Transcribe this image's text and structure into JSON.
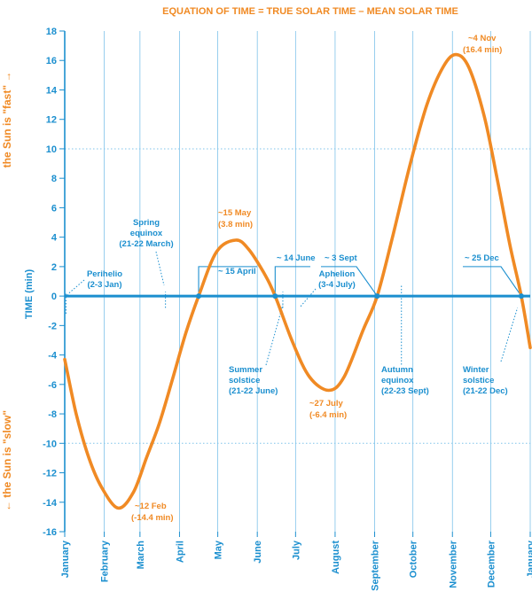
{
  "chart_data": {
    "type": "line",
    "title": "EQUATION OF TIME = TRUE SOLAR TIME – MEAN SOLAR TIME",
    "ylabel": "TIME (min)",
    "side_label_fast": "the Sun is \"fast\" →",
    "side_label_slow": "← the Sun is \"slow\"",
    "ylim": [
      -16,
      18
    ],
    "yticks": [
      -16,
      -14,
      -12,
      -10,
      -8,
      -6,
      -4,
      -2,
      0,
      2,
      4,
      6,
      8,
      10,
      12,
      14,
      16,
      18
    ],
    "xlim": [
      1,
      366
    ],
    "months": [
      {
        "label": "January",
        "day": 1
      },
      {
        "label": "February",
        "day": 32
      },
      {
        "label": "March",
        "day": 60
      },
      {
        "label": "April",
        "day": 91
      },
      {
        "label": "May",
        "day": 121
      },
      {
        "label": "June",
        "day": 152
      },
      {
        "label": "July",
        "day": 182
      },
      {
        "label": "August",
        "day": 213
      },
      {
        "label": "September",
        "day": 244
      },
      {
        "label": "October",
        "day": 274
      },
      {
        "label": "November",
        "day": 305
      },
      {
        "label": "December",
        "day": 335
      },
      {
        "label": "January",
        "day": 366
      }
    ],
    "series": [
      {
        "name": "Equation of time",
        "points": [
          [
            1,
            -4.3
          ],
          [
            10,
            -8.0
          ],
          [
            20,
            -11.0
          ],
          [
            30,
            -13.0
          ],
          [
            43,
            -14.4
          ],
          [
            55,
            -13.3
          ],
          [
            65,
            -11.0
          ],
          [
            75,
            -8.7
          ],
          [
            85,
            -5.8
          ],
          [
            96,
            -2.5
          ],
          [
            106,
            0.0
          ],
          [
            120,
            3.0
          ],
          [
            135,
            3.8
          ],
          [
            145,
            3.2
          ],
          [
            157,
            1.6
          ],
          [
            166,
            0.0
          ],
          [
            180,
            -3.2
          ],
          [
            193,
            -5.5
          ],
          [
            208,
            -6.4
          ],
          [
            220,
            -5.5
          ],
          [
            235,
            -2.3
          ],
          [
            246,
            0.0
          ],
          [
            258,
            4.0
          ],
          [
            272,
            9.0
          ],
          [
            285,
            13.0
          ],
          [
            298,
            15.6
          ],
          [
            308,
            16.4
          ],
          [
            318,
            15.5
          ],
          [
            330,
            12.2
          ],
          [
            340,
            8.0
          ],
          [
            350,
            3.5
          ],
          [
            359,
            0.0
          ],
          [
            366,
            -3.5
          ]
        ]
      }
    ],
    "annotations": {
      "perihelion": {
        "line1": "Perihelio",
        "line2": "(2-3 Jan)"
      },
      "spring_equinox": {
        "line1": "Spring",
        "line2": "equinox",
        "line3": "(21-22 March)"
      },
      "min_feb": {
        "line1": "~12 Feb",
        "line2": "(-14.4 min)"
      },
      "max_may": {
        "line1": "~15 May",
        "line2": "(3.8 min)"
      },
      "zero_april": {
        "label": "~ 15 April"
      },
      "zero_june": {
        "label": "~ 14 June"
      },
      "zero_sept": {
        "label": "~ 3 Sept"
      },
      "zero_dec": {
        "label": "~ 25 Dec"
      },
      "aphelion": {
        "line1": "Aphelion",
        "line2": "(3-4 July)"
      },
      "summer_solstice": {
        "line1": "Summer",
        "line2": "solstice",
        "line3": "(21-22 June)"
      },
      "min_july": {
        "line1": "~27 July",
        "line2": "(-6.4 min)"
      },
      "autumn_equinox": {
        "line1": "Autumn",
        "line2": "equinox",
        "line3": "(22-23 Sept)"
      },
      "max_nov": {
        "line1": "~4 Nov",
        "line2": "(16.4 min)"
      },
      "winter_solstice": {
        "line1": "Winter",
        "line2": "solstice",
        "line3": "(21-22 Dec)"
      }
    }
  },
  "colors": {
    "axis_blue": "#1b8fcf",
    "grid_blue": "#7fc3ea",
    "curve_orange": "#f08a24"
  }
}
